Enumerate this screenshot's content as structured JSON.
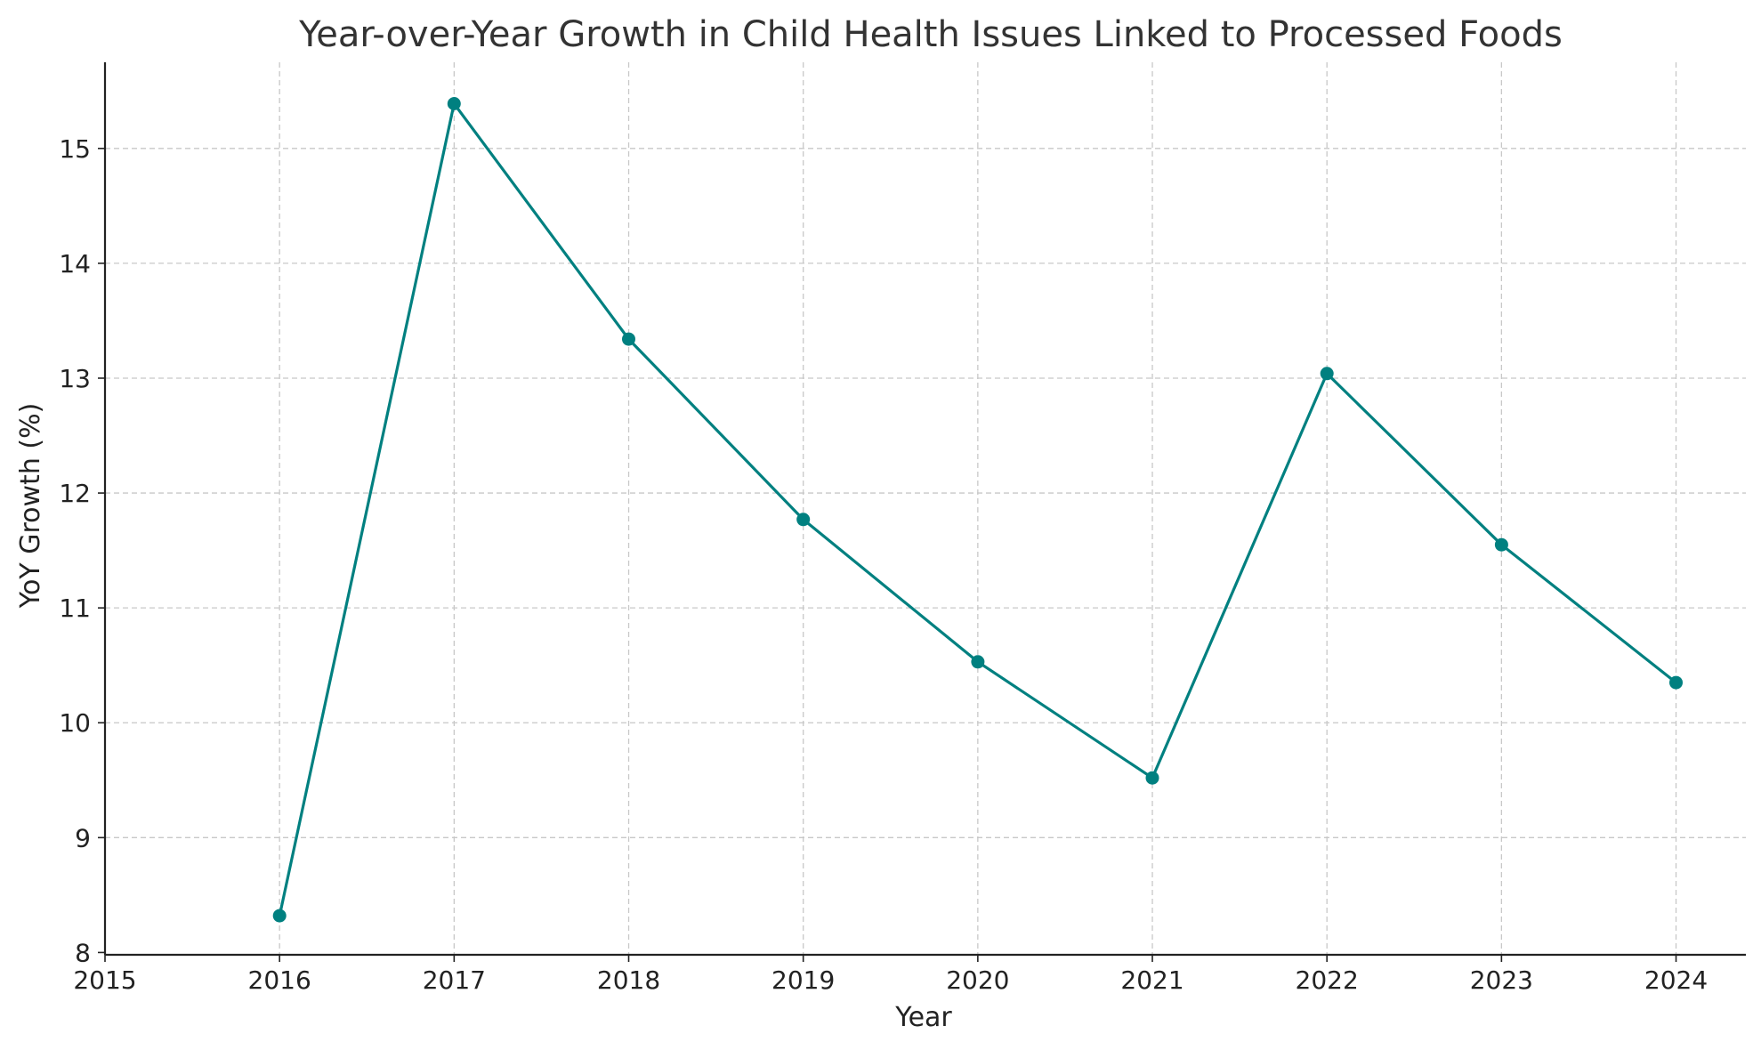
{
  "chart_data": {
    "type": "line",
    "title": "Year-over-Year Growth in Child Health Issues Linked to Processed Foods",
    "xlabel": "Year",
    "ylabel": "YoY Growth (%)",
    "x": [
      2016,
      2017,
      2018,
      2019,
      2020,
      2021,
      2022,
      2023,
      2024
    ],
    "series": [
      {
        "values": [
          8.32,
          15.39,
          13.34,
          11.77,
          10.53,
          9.52,
          13.04,
          11.55,
          10.35
        ],
        "color": "#008080",
        "marker": "circle"
      }
    ],
    "xlim": [
      2015,
      2024.4
    ],
    "ylim": [
      7.98,
      15.75
    ],
    "xticks": [
      "2015",
      "2016",
      "2017",
      "2018",
      "2019",
      "2020",
      "2021",
      "2022",
      "2023",
      "2024"
    ],
    "yticks": [
      "8",
      "9",
      "10",
      "11",
      "12",
      "13",
      "14",
      "15"
    ],
    "grid": true,
    "legend": "none"
  }
}
